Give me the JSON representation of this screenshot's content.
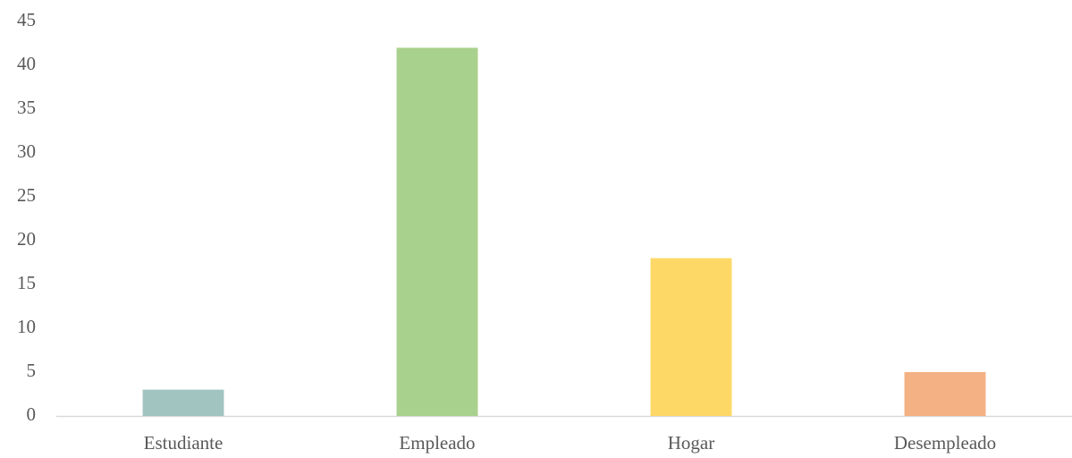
{
  "chart_data": {
    "type": "bar",
    "categories": [
      "Estudiante",
      "Empleado",
      "Hogar",
      "Desempleado"
    ],
    "values": [
      3,
      42,
      18,
      5
    ],
    "colors": [
      "#a2c4c1",
      "#a9d18e",
      "#fdd866",
      "#f4b183"
    ],
    "ylim": [
      0,
      45
    ],
    "yticks": [
      0,
      5,
      10,
      15,
      20,
      25,
      30,
      35,
      40,
      45
    ],
    "grid": false
  }
}
